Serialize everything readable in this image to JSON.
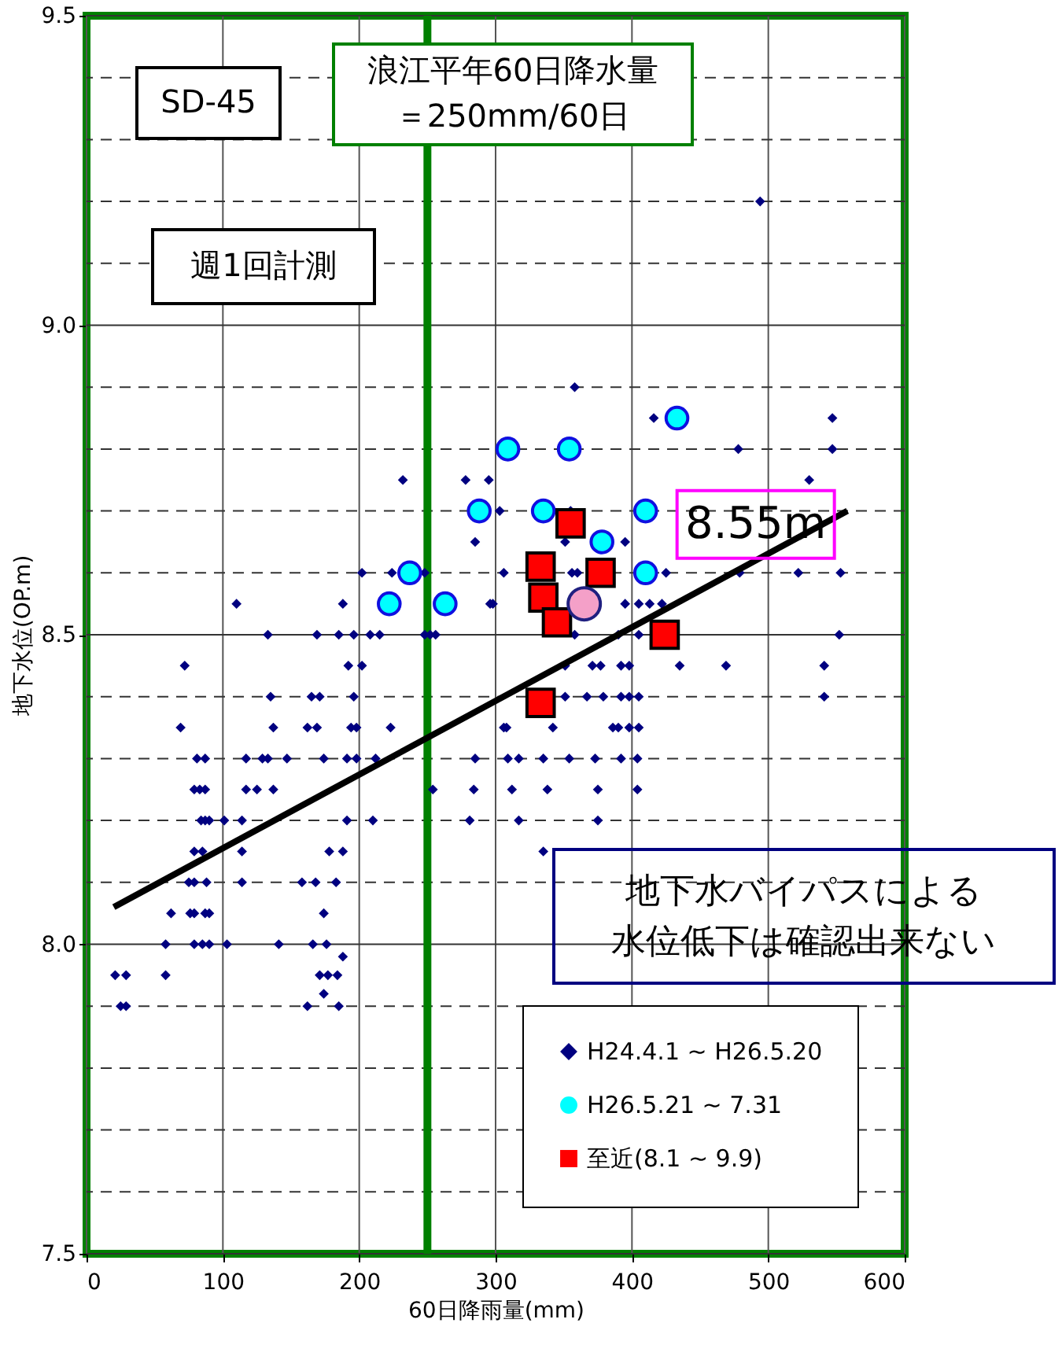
{
  "chart_data": {
    "type": "scatter",
    "xlabel": "60日降雨量(mm)",
    "ylabel": "地下水位(OP.m)",
    "xlim": [
      0,
      600
    ],
    "xticks": [
      0,
      100,
      200,
      300,
      400,
      500,
      600
    ],
    "ylim": [
      7.5,
      9.5
    ],
    "yticks": [
      7.5,
      {
        "value": 7.6,
        "label": null
      },
      {
        "value": 7.7,
        "label": null
      },
      {
        "value": 7.8,
        "label": null
      },
      {
        "value": 7.9,
        "label": null
      },
      {
        "value": 8.0,
        "label": "8.0"
      },
      {
        "value": 8.1,
        "label": null
      },
      {
        "value": 8.2,
        "label": null
      },
      {
        "value": 8.3,
        "label": null
      },
      {
        "value": 8.4,
        "label": null
      },
      8.5,
      {
        "value": 8.6,
        "label": null
      },
      {
        "value": 8.7,
        "label": null
      },
      {
        "value": 8.8,
        "label": null
      },
      {
        "value": 8.9,
        "label": null
      },
      {
        "value": 9.0,
        "label": "9.0"
      },
      {
        "value": 9.1,
        "label": null
      },
      {
        "value": 9.2,
        "label": null
      },
      {
        "value": 9.3,
        "label": null
      },
      {
        "value": 9.4,
        "label": null
      },
      9.5
    ],
    "grid": true,
    "legend": "bottom right",
    "series": [
      {
        "name": "H24.4.1 ~ H26.5.20",
        "color": "#000080",
        "marker": "diamond",
        "x": [
          202,
          224,
          248,
          306,
          356,
          360,
          425,
          479,
          522,
          553,
          110,
          188,
          296,
          298,
          395,
          405,
          413,
          422,
          133,
          169,
          185,
          196,
          208,
          215,
          248,
          252,
          256,
          358,
          390,
          405,
          552,
          72,
          192,
          202,
          351,
          371,
          377,
          392,
          398,
          435,
          469,
          541,
          135,
          165,
          171,
          196,
          351,
          367,
          379,
          392,
          398,
          405,
          541,
          69,
          137,
          162,
          169,
          194,
          198,
          223,
          306,
          308,
          342,
          386,
          390,
          398,
          405,
          81,
          87,
          117,
          129,
          133,
          147,
          174,
          191,
          198,
          212,
          285,
          309,
          317,
          335,
          354,
          373,
          392,
          404,
          79,
          83,
          87,
          117,
          125,
          137,
          254,
          284,
          312,
          338,
          375,
          404,
          84,
          87,
          90,
          101,
          114,
          191,
          210,
          281,
          317,
          375,
          79,
          85,
          114,
          178,
          188,
          335,
          75,
          79,
          88,
          114,
          158,
          168,
          183,
          62,
          76,
          79,
          87,
          90,
          174,
          58,
          79,
          85,
          90,
          103,
          141,
          166,
          176,
          188,
          21,
          29,
          58,
          171,
          177,
          184,
          174,
          25,
          29,
          162,
          185,
          358,
          416,
          547,
          478,
          547,
          232,
          278,
          295,
          530,
          303,
          355,
          285,
          351,
          395,
          494
        ],
        "values": [
          8.6,
          8.6,
          8.6,
          8.6,
          8.6,
          8.6,
          8.6,
          8.6,
          8.6,
          8.6,
          8.55,
          8.55,
          8.55,
          8.55,
          8.55,
          8.55,
          8.55,
          8.55,
          8.5,
          8.5,
          8.5,
          8.5,
          8.5,
          8.5,
          8.5,
          8.5,
          8.5,
          8.5,
          8.5,
          8.5,
          8.5,
          8.45,
          8.45,
          8.45,
          8.45,
          8.45,
          8.45,
          8.45,
          8.45,
          8.45,
          8.45,
          8.45,
          8.4,
          8.4,
          8.4,
          8.4,
          8.4,
          8.4,
          8.4,
          8.4,
          8.4,
          8.4,
          8.4,
          8.35,
          8.35,
          8.35,
          8.35,
          8.35,
          8.35,
          8.35,
          8.35,
          8.35,
          8.35,
          8.35,
          8.35,
          8.35,
          8.35,
          8.3,
          8.3,
          8.3,
          8.3,
          8.3,
          8.3,
          8.3,
          8.3,
          8.3,
          8.3,
          8.3,
          8.3,
          8.3,
          8.3,
          8.3,
          8.3,
          8.3,
          8.3,
          8.25,
          8.25,
          8.25,
          8.25,
          8.25,
          8.25,
          8.25,
          8.25,
          8.25,
          8.25,
          8.25,
          8.25,
          8.2,
          8.2,
          8.2,
          8.2,
          8.2,
          8.2,
          8.2,
          8.2,
          8.2,
          8.2,
          8.15,
          8.15,
          8.15,
          8.15,
          8.15,
          8.15,
          8.1,
          8.1,
          8.1,
          8.1,
          8.1,
          8.1,
          8.1,
          8.05,
          8.05,
          8.05,
          8.05,
          8.05,
          8.05,
          8.0,
          8.0,
          8.0,
          8.0,
          8.0,
          8.0,
          8.0,
          8.0,
          7.98,
          7.95,
          7.95,
          7.95,
          7.95,
          7.95,
          7.95,
          7.92,
          7.9,
          7.9,
          7.9,
          7.9,
          8.9,
          8.85,
          8.85,
          8.8,
          8.8,
          8.75,
          8.75,
          8.75,
          8.75,
          8.7,
          8.7,
          8.65,
          8.65,
          8.65,
          9.2
        ]
      },
      {
        "type": "line",
        "color": "#000000",
        "x": [
          20,
          558
        ],
        "values": [
          8.06,
          8.7
        ]
      },
      {
        "name": "H26.5.21 ~ 7.31",
        "color": "#00ffff",
        "marker": "circle",
        "x": [
          237,
          222,
          263,
          288,
          309,
          335,
          354,
          378,
          410,
          410,
          433
        ],
        "values": [
          8.6,
          8.55,
          8.55,
          8.7,
          8.8,
          8.7,
          8.8,
          8.65,
          8.7,
          8.6,
          8.85
        ]
      },
      {
        "name": "至近(8.1 ~ 9.9)",
        "color": "#ff0000",
        "marker": "square",
        "x": [
          355,
          333,
          335,
          345,
          377,
          424,
          333
        ],
        "values": [
          8.68,
          8.61,
          8.56,
          8.52,
          8.6,
          8.5,
          8.39
        ]
      },
      {
        "color": "#f4a0c8",
        "marker": "circle",
        "x": [
          365
        ],
        "values": [
          8.55
        ]
      }
    ],
    "ref_lines": [
      {
        "axis": "x",
        "value": 250,
        "label": "浪江平年60日降水量＝250mm/60日",
        "color": "#008000"
      }
    ],
    "annotations": [
      "SD-45",
      "週1回計測",
      "地下水バイパスによる水位低下は確認出来ない",
      {
        "text": "8.55m",
        "x": 365,
        "y": 8.55
      }
    ]
  }
}
